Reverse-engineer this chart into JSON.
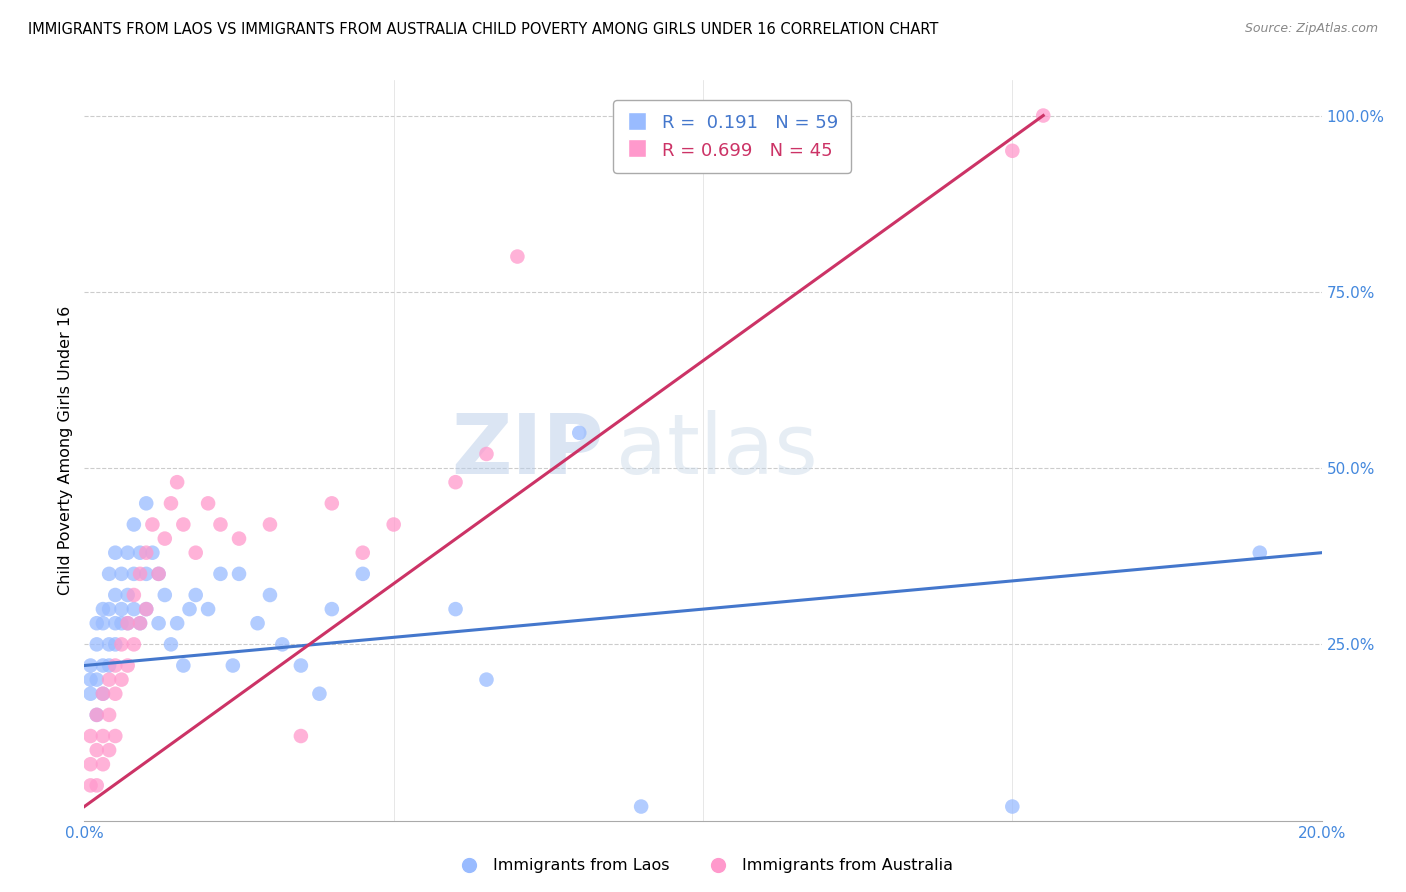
{
  "title": "IMMIGRANTS FROM LAOS VS IMMIGRANTS FROM AUSTRALIA CHILD POVERTY AMONG GIRLS UNDER 16 CORRELATION CHART",
  "source": "Source: ZipAtlas.com",
  "ylabel": "Child Poverty Among Girls Under 16",
  "legend_label1": "Immigrants from Laos",
  "legend_label2": "Immigrants from Australia",
  "r1": 0.191,
  "n1": 59,
  "r2": 0.699,
  "n2": 45,
  "color1": "#99bbff",
  "color2": "#ff99cc",
  "line_color1": "#4477cc",
  "line_color2": "#cc3366",
  "watermark_zip": "ZIP",
  "watermark_atlas": "atlas",
  "xmin": 0.0,
  "xmax": 0.2,
  "ymin": 0.0,
  "ymax": 1.05,
  "laos_x": [
    0.001,
    0.001,
    0.001,
    0.002,
    0.002,
    0.002,
    0.002,
    0.003,
    0.003,
    0.003,
    0.003,
    0.004,
    0.004,
    0.004,
    0.004,
    0.005,
    0.005,
    0.005,
    0.005,
    0.006,
    0.006,
    0.006,
    0.007,
    0.007,
    0.007,
    0.008,
    0.008,
    0.008,
    0.009,
    0.009,
    0.01,
    0.01,
    0.01,
    0.011,
    0.012,
    0.012,
    0.013,
    0.014,
    0.015,
    0.016,
    0.017,
    0.018,
    0.02,
    0.022,
    0.024,
    0.025,
    0.028,
    0.03,
    0.032,
    0.035,
    0.038,
    0.04,
    0.045,
    0.06,
    0.065,
    0.08,
    0.09,
    0.15,
    0.19
  ],
  "laos_y": [
    0.2,
    0.22,
    0.18,
    0.25,
    0.28,
    0.15,
    0.2,
    0.3,
    0.22,
    0.28,
    0.18,
    0.35,
    0.25,
    0.3,
    0.22,
    0.32,
    0.28,
    0.38,
    0.25,
    0.35,
    0.28,
    0.3,
    0.38,
    0.32,
    0.28,
    0.42,
    0.35,
    0.3,
    0.38,
    0.28,
    0.45,
    0.35,
    0.3,
    0.38,
    0.35,
    0.28,
    0.32,
    0.25,
    0.28,
    0.22,
    0.3,
    0.32,
    0.3,
    0.35,
    0.22,
    0.35,
    0.28,
    0.32,
    0.25,
    0.22,
    0.18,
    0.3,
    0.35,
    0.3,
    0.2,
    0.55,
    0.02,
    0.02,
    0.38
  ],
  "australia_x": [
    0.001,
    0.001,
    0.001,
    0.002,
    0.002,
    0.002,
    0.003,
    0.003,
    0.003,
    0.004,
    0.004,
    0.004,
    0.005,
    0.005,
    0.005,
    0.006,
    0.006,
    0.007,
    0.007,
    0.008,
    0.008,
    0.009,
    0.009,
    0.01,
    0.01,
    0.011,
    0.012,
    0.013,
    0.014,
    0.015,
    0.016,
    0.018,
    0.02,
    0.022,
    0.025,
    0.03,
    0.035,
    0.04,
    0.045,
    0.05,
    0.06,
    0.065,
    0.07,
    0.15,
    0.155
  ],
  "australia_y": [
    0.05,
    0.08,
    0.12,
    0.1,
    0.05,
    0.15,
    0.12,
    0.08,
    0.18,
    0.15,
    0.2,
    0.1,
    0.22,
    0.18,
    0.12,
    0.25,
    0.2,
    0.28,
    0.22,
    0.32,
    0.25,
    0.35,
    0.28,
    0.38,
    0.3,
    0.42,
    0.35,
    0.4,
    0.45,
    0.48,
    0.42,
    0.38,
    0.45,
    0.42,
    0.4,
    0.42,
    0.12,
    0.45,
    0.38,
    0.42,
    0.48,
    0.52,
    0.8,
    0.95,
    1.0
  ],
  "blue_line_x0": 0.0,
  "blue_line_x1": 0.2,
  "blue_line_y0": 0.22,
  "blue_line_y1": 0.38,
  "pink_line_x0": 0.0,
  "pink_line_x1": 0.155,
  "pink_line_y0": 0.02,
  "pink_line_y1": 1.0
}
